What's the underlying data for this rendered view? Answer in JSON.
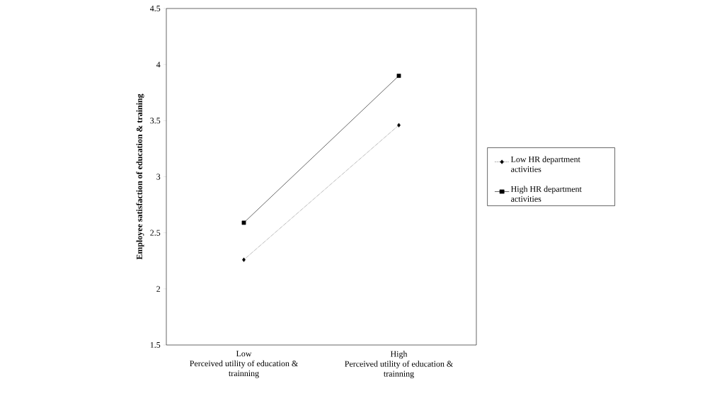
{
  "chart_data": {
    "type": "line",
    "ylabel": "Employee satisfaction of education & training",
    "categories": [
      "Low\nPerceived utility of education & trainning",
      "High\nPerceived utility of education & trainning"
    ],
    "series": [
      {
        "name": "Low HR department activities",
        "color": "#000000",
        "values": [
          2.26,
          3.46
        ],
        "marker": "diamond",
        "line_style": "dotted"
      },
      {
        "name": "High HR department activities",
        "color": "#000000",
        "values": [
          2.59,
          3.9
        ],
        "marker": "square",
        "line_style": "solid"
      }
    ],
    "ylim": [
      1.5,
      4.5
    ],
    "yticks": [
      1.5,
      2,
      2.5,
      3,
      3.5,
      4,
      4.5
    ],
    "grid": false,
    "legend": "right"
  }
}
